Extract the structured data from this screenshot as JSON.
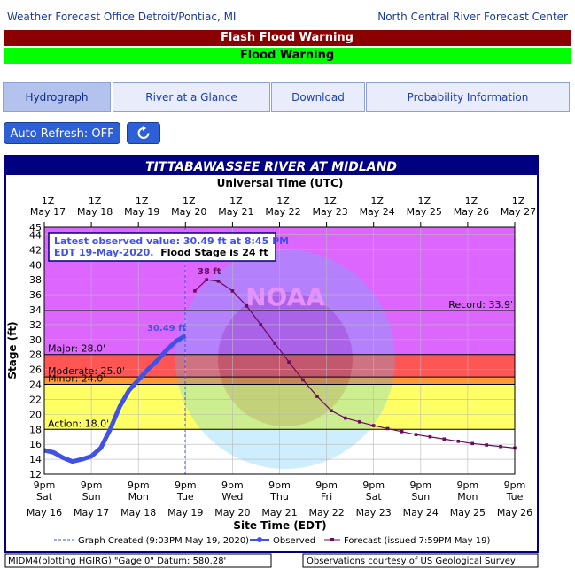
{
  "header": {
    "left_link": "Weather Forecast Office Detroit/Pontiac, MI",
    "right_link": "North Central River Forecast Center"
  },
  "alerts": {
    "flash": "Flash Flood Warning",
    "flood": "Flood Warning",
    "flash_color": "#8b0000",
    "flood_color": "#00ff00"
  },
  "tabs": [
    "Hydrograph",
    "River at a Glance",
    "Download",
    "Probability Information"
  ],
  "controls": {
    "auto_refresh": "Auto Refresh: OFF",
    "refresh_icon": "refresh-icon"
  },
  "chart_data": {
    "type": "line",
    "title": "TITTABAWASSEE RIVER AT MIDLAND",
    "top_axis_title": "Universal Time (UTC)",
    "top_ticks": [
      {
        "t1": "1Z",
        "t2": "May 17"
      },
      {
        "t1": "1Z",
        "t2": "May 18"
      },
      {
        "t1": "1Z",
        "t2": "May 19"
      },
      {
        "t1": "1Z",
        "t2": "May 20"
      },
      {
        "t1": "1Z",
        "t2": "May 21"
      },
      {
        "t1": "1Z",
        "t2": "May 22"
      },
      {
        "t1": "1Z",
        "t2": "May 23"
      },
      {
        "t1": "1Z",
        "t2": "May 24"
      },
      {
        "t1": "1Z",
        "t2": "May 25"
      },
      {
        "t1": "1Z",
        "t2": "May 26"
      },
      {
        "t1": "1Z",
        "t2": "May 27"
      }
    ],
    "bottom_ticks": [
      {
        "t1": "9pm",
        "t2": "Sat",
        "t3": "May 16"
      },
      {
        "t1": "9pm",
        "t2": "Sun",
        "t3": "May 17"
      },
      {
        "t1": "9pm",
        "t2": "Mon",
        "t3": "May 18"
      },
      {
        "t1": "9pm",
        "t2": "Tue",
        "t3": "May 19"
      },
      {
        "t1": "9pm",
        "t2": "Wed",
        "t3": "May 20"
      },
      {
        "t1": "9pm",
        "t2": "Thu",
        "t3": "May 21"
      },
      {
        "t1": "9pm",
        "t2": "Fri",
        "t3": "May 22"
      },
      {
        "t1": "9pm",
        "t2": "Sat",
        "t3": "May 23"
      },
      {
        "t1": "9pm",
        "t2": "Sun",
        "t3": "May 24"
      },
      {
        "t1": "9pm",
        "t2": "Mon",
        "t3": "May 25"
      },
      {
        "t1": "9pm",
        "t2": "Tue",
        "t3": "May 26"
      }
    ],
    "xlabel": "Site Time (EDT)",
    "ylabel": "Stage (ft)",
    "ylim": [
      12,
      45
    ],
    "yticks": [
      12,
      14,
      16,
      18,
      20,
      22,
      24,
      26,
      28,
      30,
      32,
      34,
      36,
      38,
      40,
      42,
      44,
      45
    ],
    "bands": [
      {
        "name": "Action: 18.0'",
        "from": 18,
        "to": 24,
        "color": "#ffff66"
      },
      {
        "name": "Minor: 24.0'",
        "from": 24,
        "to": 25,
        "color": "#ff9933"
      },
      {
        "name": "Moderate: 25.0'",
        "from": 25,
        "to": 28,
        "color": "#ff5555"
      },
      {
        "name": "Major: 28.0'",
        "from": 28,
        "to": 45,
        "color": "#dd66ff"
      }
    ],
    "record": {
      "label": "Record: 33.9'",
      "value": 33.9
    },
    "info_box": {
      "line1": "Latest observed value: 30.49 ft at 8:45 PM",
      "line2a": "EDT 19-May-2020.",
      "line2b": "Flood Stage is 24 ft"
    },
    "observed_label": "30.49 ft",
    "forecast_peak_label": "38 ft",
    "series": [
      {
        "name": "Observed",
        "color": "#3f51e6",
        "x": [
          0,
          0.2,
          0.4,
          0.6,
          0.8,
          1.0,
          1.2,
          1.4,
          1.6,
          1.8,
          2.0,
          2.2,
          2.4,
          2.6,
          2.8,
          3.0
        ],
        "values": [
          15.2,
          14.9,
          14.2,
          13.7,
          14.0,
          14.4,
          15.5,
          18.0,
          21.0,
          23.2,
          24.6,
          26.0,
          27.2,
          28.6,
          29.8,
          30.5
        ]
      },
      {
        "name": "Forecast (issued 7:59PM May 19)",
        "color": "#6a0a5e",
        "x": [
          3.2,
          3.45,
          3.7,
          4.0,
          4.3,
          4.6,
          4.9,
          5.2,
          5.5,
          5.8,
          6.1,
          6.4,
          6.7,
          7.0,
          7.3,
          7.6,
          7.9,
          8.2,
          8.5,
          8.8,
          9.1,
          9.4,
          9.7,
          10.0
        ],
        "values": [
          36.5,
          38.0,
          37.8,
          36.5,
          34.5,
          32.0,
          29.5,
          27.0,
          24.6,
          22.4,
          20.5,
          19.5,
          19.0,
          18.5,
          18.1,
          17.7,
          17.3,
          17.0,
          16.7,
          16.4,
          16.1,
          15.9,
          15.7,
          15.5
        ]
      }
    ],
    "legend": {
      "created": "Graph Created (9:03PM May 19, 2020)",
      "observed": "Observed",
      "forecast": "Forecast (issued 7:59PM May 19)"
    },
    "footer_left": "MIDM4(plotting HGIRG) \"Gage 0\" Datum: 580.28'",
    "footer_right": "Observations courtesy of US Geological Survey"
  }
}
